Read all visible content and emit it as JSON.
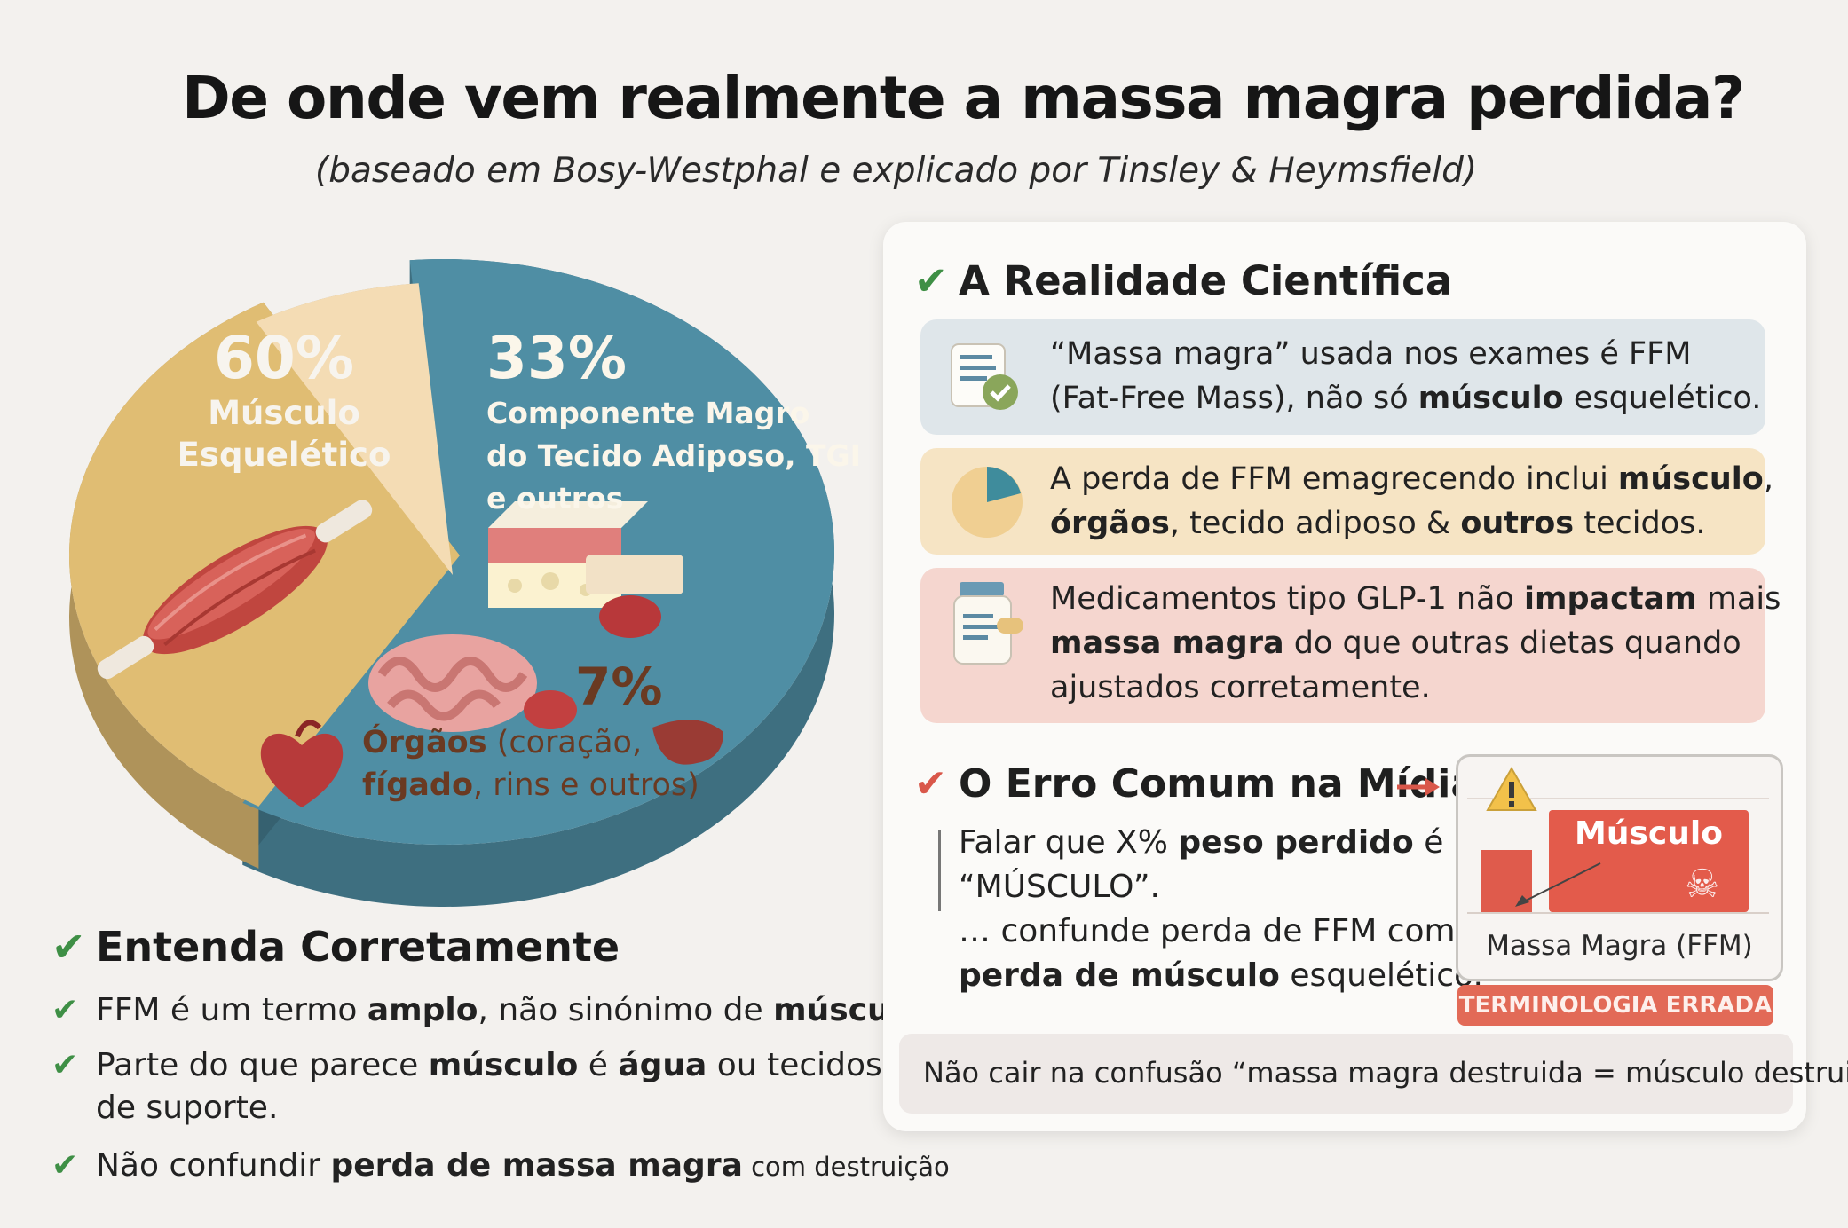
{
  "title": "De onde vem realmente a massa magra perdida?",
  "subtitle": "(baseado em Bosy-Westphal e explicado por Tinsley & Heymsfield)",
  "chart_data": {
    "type": "pie",
    "slices": [
      {
        "value": 60,
        "pct_label": "60%",
        "label_lines": [
          "Músculo",
          "Esquelético"
        ],
        "color": "#4f8ea4"
      },
      {
        "value": 33,
        "pct_label": "33%",
        "label_lines": [
          "Componente Magro",
          "do Tecido Adiposo, TGI",
          "e outros"
        ],
        "color": "#e0bd73"
      },
      {
        "value": 7,
        "pct_label": "7%",
        "label_bold_1": "Órgãos",
        "label_rest_1": " (coração,",
        "label_bold_2": "fígado",
        "label_rest_2": ", rins e outros)",
        "color": "#f4dcb4"
      }
    ]
  },
  "understand": {
    "title": "Entenda Corretamente",
    "items": [
      {
        "parts": [
          {
            "t": "FFM é um termo "
          },
          {
            "t": "amplo",
            "b": true
          },
          {
            "t": ", não sinónimo de "
          },
          {
            "t": "músculo",
            "b": true
          },
          {
            "t": "."
          }
        ]
      },
      {
        "parts": [
          {
            "t": "Parte do que parece "
          },
          {
            "t": "músculo",
            "b": true
          },
          {
            "t": " é "
          },
          {
            "t": "água",
            "b": true
          },
          {
            "t": " ou tecidos"
          }
        ],
        "line2": "de suporte."
      },
      {
        "parts": [
          {
            "t": "Não confundir "
          },
          {
            "t": "perda de massa magra",
            "b": true
          },
          {
            "t": " com destruição",
            "s": true
          }
        ]
      }
    ]
  },
  "science": {
    "title": "A Realidade Científica",
    "cards": [
      {
        "line1": [
          {
            "t": "“Massa magra” usada nos exames é FFM"
          }
        ],
        "line2": [
          {
            "t": "(Fat-Free Mass), não só "
          },
          {
            "t": "músculo",
            "b": true
          },
          {
            "t": " esquelético."
          }
        ],
        "color": "#dfe6ea",
        "icon": "document-check-icon"
      },
      {
        "line1": [
          {
            "t": "A perda de FFM emagrecendo inclui "
          },
          {
            "t": "músculo",
            "b": true
          },
          {
            "t": ","
          }
        ],
        "line2": [
          {
            "t": "órgãos",
            "b": true
          },
          {
            "t": ", tecido adiposo & "
          },
          {
            "t": "outros",
            "b": true
          },
          {
            "t": " tecidos."
          }
        ],
        "color": "#f6e4c4",
        "icon": "pie-chart-icon"
      },
      {
        "line1": [
          {
            "t": "Medicamentos tipo GLP-1 não "
          },
          {
            "t": "impactam",
            "b": true
          },
          {
            "t": " mais"
          }
        ],
        "line2": [
          {
            "t": "massa magra",
            "b": true
          },
          {
            "t": " do que outras dietas quando"
          }
        ],
        "line3": [
          {
            "t": "ajustados corretamente."
          }
        ],
        "color": "#f5d6cf",
        "icon": "medication-icon"
      }
    ]
  },
  "error": {
    "title": "O Erro Comum na Mídia",
    "text_line1": [
      {
        "t": "Falar que X% "
      },
      {
        "t": "peso perdido",
        "b": true
      },
      {
        "t": " é"
      }
    ],
    "text_line2": "“MÚSCULO”.",
    "text_line3": "… confunde perda de FFM com",
    "text_line4": [
      {
        "t": "perda de músculo",
        "b": true
      },
      {
        "t": " esquelético."
      }
    ],
    "figure_bar_label": "Músculo",
    "figure_caption": "Massa Magra (FFM)",
    "badge": "TERMINOLOGIA ERRADA"
  },
  "footer": "Não cair na confusão “massa magra destruida = músculo destruido”."
}
